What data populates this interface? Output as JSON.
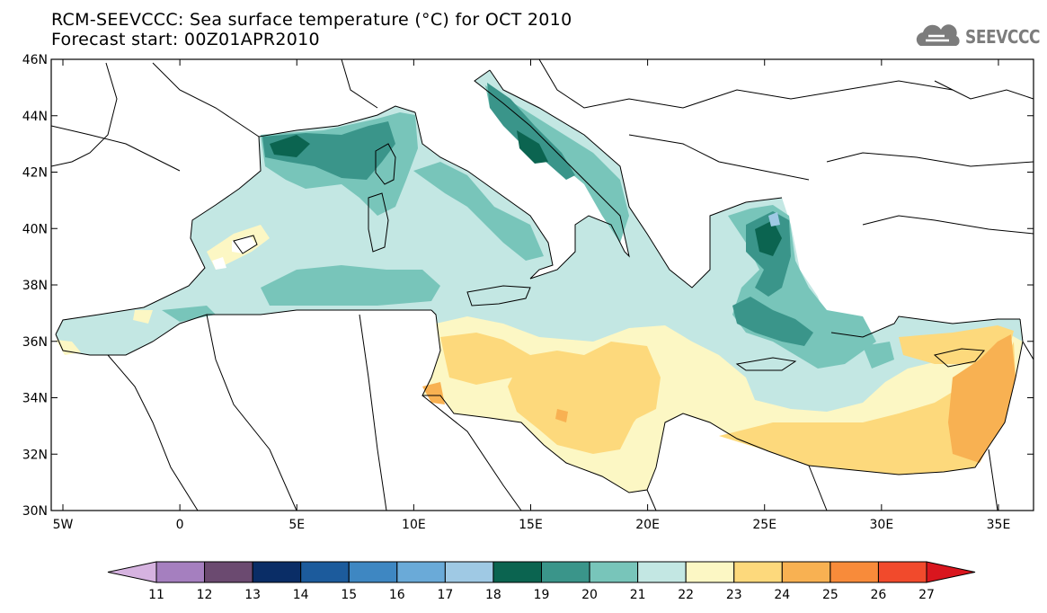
{
  "title": {
    "line1": "RCM-SEEVCCC: Sea surface temperature (°C) for OCT 2010",
    "line2": "Forecast start: 00Z01APR2010"
  },
  "logo": {
    "text": "SEEVCCC",
    "icon": "cloud-logo-icon",
    "color": "#7c7c7c"
  },
  "map": {
    "lon_range": [
      -5.5,
      36.5
    ],
    "lat_range": [
      30,
      46
    ],
    "x_ticks": [
      "5W",
      "0",
      "5E",
      "10E",
      "15E",
      "20E",
      "25E",
      "30E",
      "35E"
    ],
    "y_ticks": [
      "46N",
      "44N",
      "42N",
      "40N",
      "38N",
      "36N",
      "34N",
      "32N",
      "30N"
    ]
  },
  "colorbar": {
    "labels": [
      "11",
      "12",
      "13",
      "14",
      "15",
      "16",
      "17",
      "18",
      "19",
      "20",
      "21",
      "22",
      "23",
      "24",
      "25",
      "26",
      "27"
    ],
    "colors": [
      "#d6b3e0",
      "#a57fbf",
      "#6b4a70",
      "#0a2d66",
      "#1c5b9c",
      "#3e87c2",
      "#6aaad8",
      "#9fc9e4",
      "#0b6450",
      "#3a958a",
      "#78c5ba",
      "#c3e7e3",
      "#fcf7c4",
      "#fdd97c",
      "#f8b152",
      "#f88b3a",
      "#f14a2c",
      "#d9161e"
    ]
  }
}
